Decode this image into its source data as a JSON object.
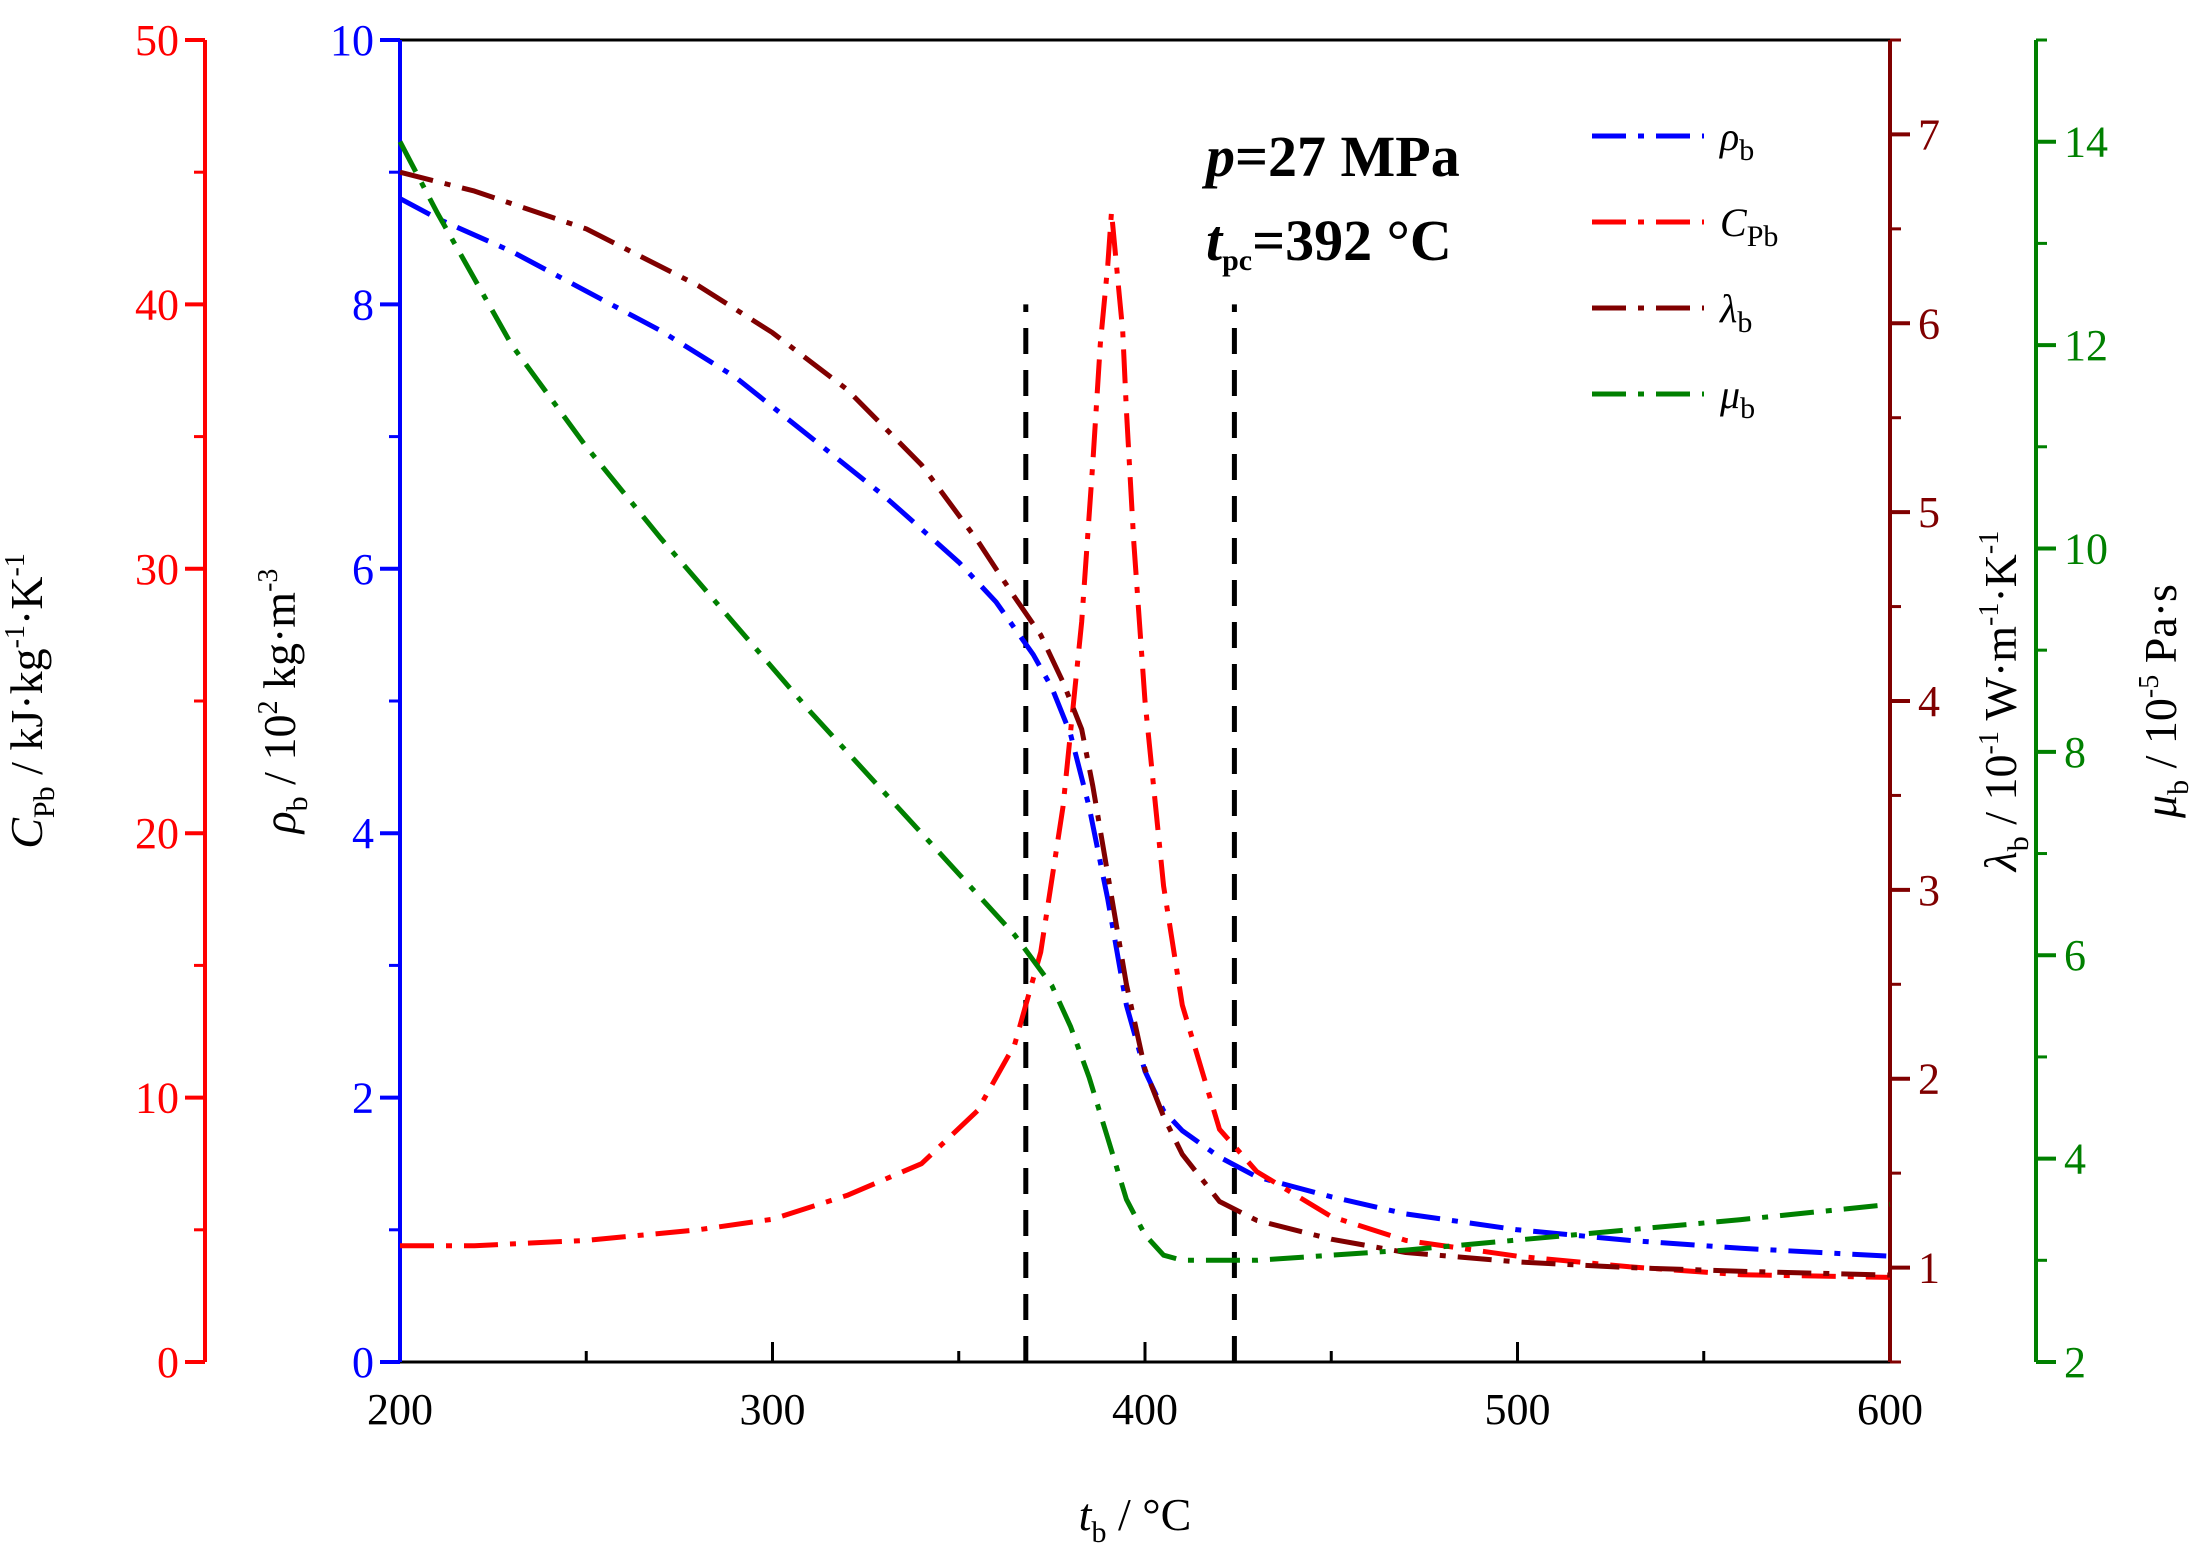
{
  "chart_data": {
    "type": "line",
    "x_axis": {
      "label_var": "t",
      "label_sub": "b",
      "label_unit": " / °C",
      "range": [
        200,
        600
      ],
      "ticks": [
        200,
        300,
        400,
        500,
        600
      ],
      "tick_labels": [
        "200",
        "300",
        "400",
        "500",
        "600"
      ]
    },
    "y_axes": [
      {
        "id": "cp",
        "color": "#ff0000",
        "side": "left-outer",
        "range": [
          0,
          50
        ],
        "ticks": [
          0,
          10,
          20,
          30,
          40,
          50
        ],
        "tick_labels": [
          "0",
          "10",
          "20",
          "30",
          "40",
          "50"
        ],
        "label_var": "C",
        "label_sub": "Pb",
        "label_unit_a": " / kJ·kg",
        "label_sup_a": "-1",
        "label_unit_b": "·K",
        "label_sup_b": "-1"
      },
      {
        "id": "rho",
        "color": "#0000ff",
        "side": "left-inner",
        "range": [
          0,
          10
        ],
        "ticks": [
          0,
          2,
          4,
          6,
          8,
          10
        ],
        "tick_labels": [
          "0",
          "2",
          "4",
          "6",
          "8",
          "10"
        ],
        "label_var": "ρ",
        "label_sub": "b",
        "label_unit_a": " / 10",
        "label_sup_a": "2",
        "label_unit_b": " kg·m",
        "label_sup_b": "-3"
      },
      {
        "id": "lambda",
        "color": "#800000",
        "side": "right-inner",
        "range": [
          0.5,
          7.5
        ],
        "ticks": [
          1,
          2,
          3,
          4,
          5,
          6,
          7
        ],
        "tick_labels": [
          "1",
          "2",
          "3",
          "4",
          "5",
          "6",
          "7"
        ],
        "label_var": "λ",
        "label_sub": "b",
        "label_unit_a": " / 10",
        "label_sup_a": "-1",
        "label_unit_b": " W·m",
        "label_sup_b": "-1",
        "label_unit_c": "·K",
        "label_sup_c": "-1"
      },
      {
        "id": "mu",
        "color": "#008000",
        "side": "right-outer",
        "range": [
          2,
          15
        ],
        "ticks": [
          2,
          4,
          6,
          8,
          10,
          12,
          14
        ],
        "tick_labels": [
          "2",
          "4",
          "6",
          "8",
          "10",
          "12",
          "14"
        ],
        "label_var": "μ",
        "label_sub": "b",
        "label_unit_a": " / 10",
        "label_sup_a": "-5",
        "label_unit_b": " Pa·s"
      }
    ],
    "series": [
      {
        "name_var": "ρ",
        "name_sub": "b",
        "axis": "rho",
        "color": "#0000ff",
        "x": [
          200,
          210,
          230,
          250,
          270,
          290,
          310,
          330,
          350,
          360,
          365,
          370,
          375,
          380,
          385,
          390,
          395,
          400,
          405,
          410,
          420,
          430,
          450,
          470,
          500,
          530,
          560,
          600
        ],
        "y": [
          8.8,
          8.65,
          8.4,
          8.1,
          7.8,
          7.45,
          7.0,
          6.55,
          6.05,
          5.75,
          5.55,
          5.35,
          5.1,
          4.75,
          4.2,
          3.5,
          2.7,
          2.2,
          1.9,
          1.75,
          1.55,
          1.4,
          1.25,
          1.12,
          1.0,
          0.92,
          0.86,
          0.8
        ]
      },
      {
        "name_var": "C",
        "name_sub": "Pb",
        "axis": "cp",
        "color": "#ff0000",
        "x": [
          200,
          220,
          250,
          280,
          300,
          320,
          340,
          355,
          365,
          372,
          378,
          383,
          386,
          388,
          390,
          391,
          392,
          393,
          394,
          395,
          397,
          400,
          405,
          410,
          420,
          430,
          450,
          470,
          500,
          530,
          560,
          600
        ],
        "y": [
          4.4,
          4.4,
          4.6,
          5.0,
          5.4,
          6.3,
          7.5,
          9.5,
          12.0,
          15.5,
          21.0,
          28.0,
          34.0,
          38.5,
          41.5,
          43.5,
          42.0,
          40.5,
          39.0,
          36.0,
          31.0,
          25.0,
          18.0,
          13.5,
          8.8,
          7.2,
          5.5,
          4.6,
          4.0,
          3.6,
          3.3,
          3.2
        ]
      },
      {
        "name_var": "λ",
        "name_sub": "b",
        "axis": "lambda",
        "color": "#800000",
        "x": [
          200,
          220,
          250,
          280,
          300,
          320,
          340,
          355,
          365,
          372,
          378,
          383,
          386,
          389,
          392,
          395,
          400,
          405,
          410,
          420,
          430,
          450,
          470,
          500,
          530,
          560,
          600
        ],
        "y": [
          6.8,
          6.7,
          6.5,
          6.2,
          5.95,
          5.65,
          5.25,
          4.85,
          4.55,
          4.35,
          4.1,
          3.85,
          3.55,
          3.2,
          2.85,
          2.5,
          2.05,
          1.8,
          1.6,
          1.35,
          1.25,
          1.15,
          1.08,
          1.03,
          1.0,
          0.98,
          0.96
        ]
      },
      {
        "name_var": "μ",
        "name_sub": "b",
        "axis": "mu",
        "color": "#008000",
        "x": [
          200,
          210,
          230,
          250,
          270,
          290,
          310,
          330,
          350,
          365,
          375,
          380,
          385,
          390,
          395,
          400,
          405,
          410,
          420,
          430,
          450,
          470,
          500,
          530,
          560,
          600
        ],
        "y": [
          14.0,
          13.3,
          12.0,
          11.0,
          10.1,
          9.25,
          8.4,
          7.6,
          6.8,
          6.2,
          5.7,
          5.3,
          4.8,
          4.2,
          3.6,
          3.25,
          3.05,
          3.0,
          3.0,
          3.0,
          3.05,
          3.1,
          3.2,
          3.3,
          3.4,
          3.55
        ]
      }
    ],
    "reference_lines": [
      {
        "x": 368,
        "y_from": 0,
        "y_to": 8.0,
        "axis": "rho"
      },
      {
        "x": 424,
        "y_from": 0,
        "y_to": 8.0,
        "axis": "rho"
      }
    ],
    "annotation": {
      "line1_var": "p",
      "line1_rest": "=27 MPa",
      "line2_var": "t",
      "line2_sub": "pc",
      "line2_rest": "=392 °C"
    },
    "legend_position": "top-right"
  }
}
